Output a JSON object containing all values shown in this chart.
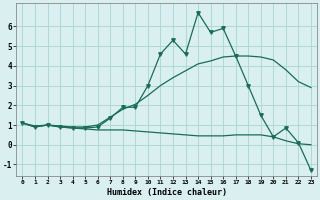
{
  "xlabel": "Humidex (Indice chaleur)",
  "background_color": "#daf0f0",
  "grid_color": "#b0d8d8",
  "line_color": "#1a6b5a",
  "xlim": [
    -0.5,
    23.5
  ],
  "ylim": [
    -1.6,
    7.2
  ],
  "xticks": [
    0,
    1,
    2,
    3,
    4,
    5,
    6,
    7,
    8,
    9,
    10,
    11,
    12,
    13,
    14,
    15,
    16,
    17,
    18,
    19,
    20,
    21,
    22,
    23
  ],
  "yticks": [
    -1,
    0,
    1,
    2,
    3,
    4,
    5,
    6
  ],
  "line1": [
    1.1,
    0.9,
    1.0,
    0.9,
    0.85,
    0.85,
    0.9,
    1.35,
    1.9,
    1.9,
    3.0,
    4.6,
    5.3,
    4.6,
    6.7,
    5.7,
    5.9,
    4.5,
    3.0,
    1.5,
    0.4,
    0.85,
    0.1,
    -1.3
  ],
  "line2": [
    1.1,
    0.95,
    1.0,
    0.95,
    0.9,
    0.9,
    1.0,
    1.4,
    1.8,
    2.05,
    2.5,
    3.0,
    3.4,
    3.75,
    4.1,
    4.25,
    4.45,
    4.5,
    4.5,
    4.45,
    4.3,
    3.8,
    3.2,
    2.9
  ],
  "line3": [
    1.1,
    0.9,
    1.0,
    0.9,
    0.85,
    0.8,
    0.75,
    0.75,
    0.75,
    0.7,
    0.65,
    0.6,
    0.55,
    0.5,
    0.45,
    0.45,
    0.45,
    0.5,
    0.5,
    0.5,
    0.4,
    0.2,
    0.05,
    0.0
  ],
  "markersize": 2.5,
  "linewidth": 0.9
}
